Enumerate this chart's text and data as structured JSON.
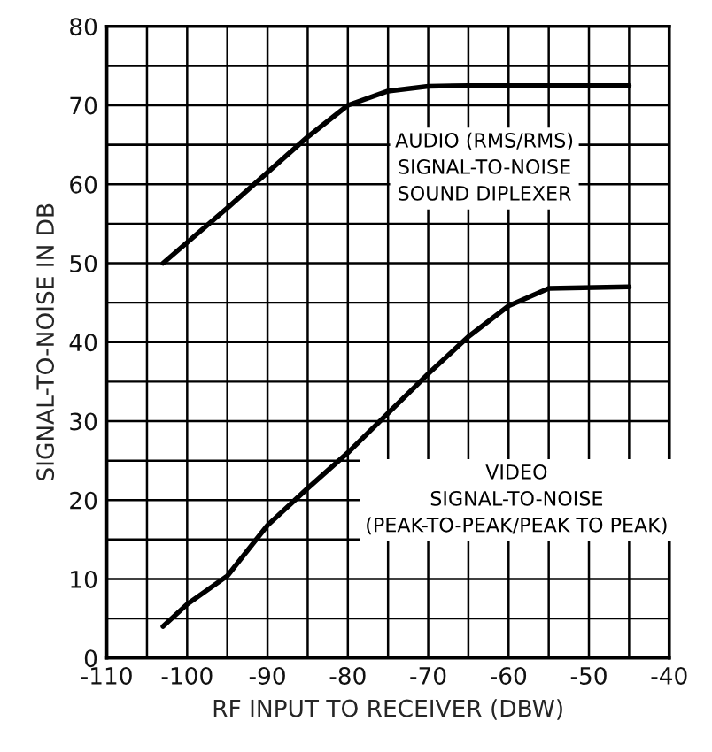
{
  "chart_data": {
    "type": "line",
    "xlabel": "RF INPUT TO RECEIVER (DBW)",
    "ylabel": "SIGNAL-TO-NOISE IN DB",
    "series": [
      {
        "name": "AUDIO (RMS/RMS)\nSIGNAL-TO-NOISE\nSOUND DIPLEXER",
        "color": "#000000",
        "x": [
          -103,
          -95,
          -90,
          -85,
          -80,
          -75,
          -70,
          -65,
          -60,
          -45
        ],
        "values": [
          50,
          57,
          61.5,
          66,
          70,
          71.8,
          72.4,
          72.5,
          72.5,
          72.5
        ]
      },
      {
        "name": "VIDEO\nSIGNAL-TO-NOISE\n(PEAK-TO-PEAK/PEAK TO PEAK)",
        "color": "#000000",
        "x": [
          -103,
          -100,
          -95,
          -90,
          -85,
          -80,
          -75,
          -70,
          -65,
          -60,
          -55,
          -45
        ],
        "values": [
          4,
          6.8,
          10.4,
          16.8,
          21.5,
          26,
          31,
          36,
          40.7,
          44.6,
          46.8,
          47
        ]
      }
    ],
    "xlim": [
      -110,
      -40
    ],
    "ylim": [
      0,
      80
    ],
    "xticks": [
      -110,
      {
        "value": -105,
        "label": null
      },
      -100,
      {
        "value": -95,
        "label": null
      },
      -90,
      {
        "value": -85,
        "label": null
      },
      -80,
      {
        "value": -75,
        "label": null
      },
      -70,
      {
        "value": -65,
        "label": null
      },
      -60,
      {
        "value": -55,
        "label": null
      },
      -50,
      {
        "value": -45,
        "label": null
      },
      -40
    ],
    "yticks": [
      0,
      {
        "value": 5,
        "label": null
      },
      10,
      {
        "value": 15,
        "label": null
      },
      20,
      {
        "value": 25,
        "label": null
      },
      30,
      {
        "value": 35,
        "label": null
      },
      40,
      {
        "value": 45,
        "label": null
      },
      50,
      {
        "value": 55,
        "label": null
      },
      60,
      {
        "value": 65,
        "label": null
      },
      70,
      {
        "value": 75,
        "label": null
      },
      80
    ],
    "grid": true,
    "line_style": "solid",
    "marker": "none",
    "legend": false
  }
}
